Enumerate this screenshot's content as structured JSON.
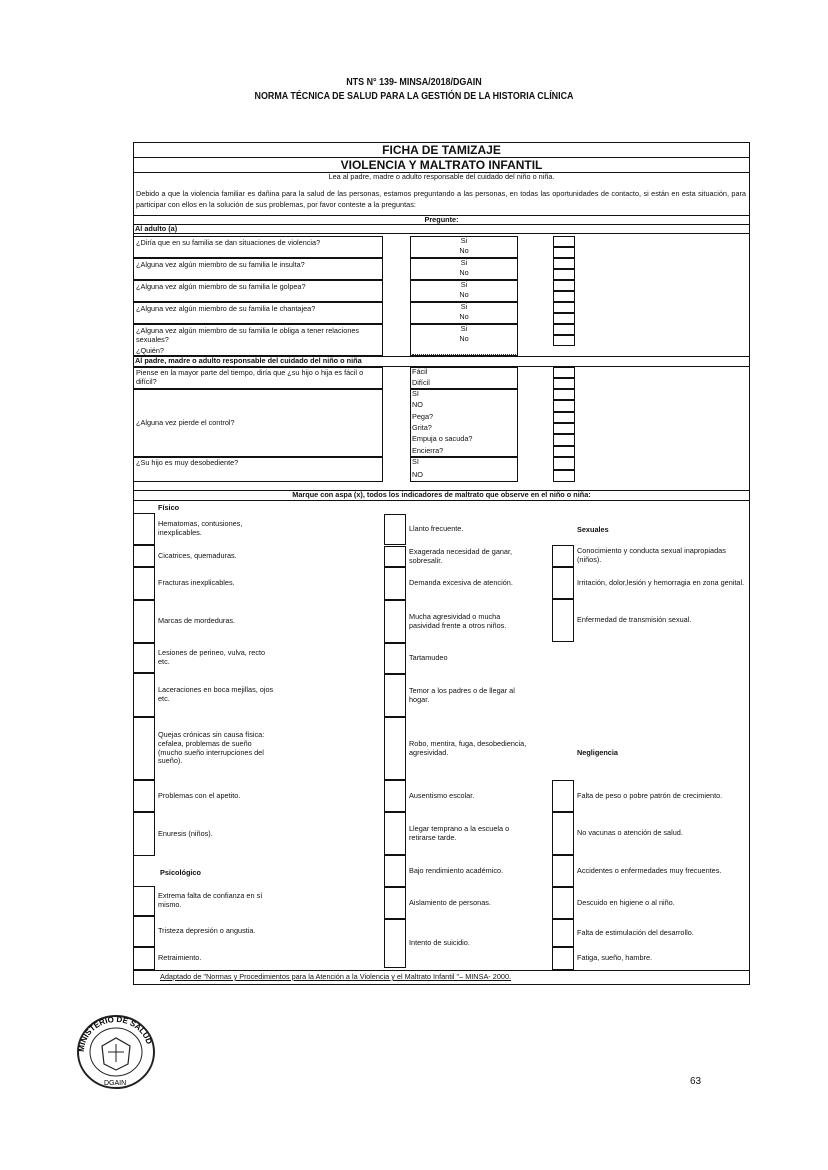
{
  "header": {
    "line1": "NTS N° 139- MINSA/2018/DGAIN",
    "line2": "NORMA TÉCNICA DE SALUD PARA LA GESTIÓN DE LA HISTORIA CLÍNICA"
  },
  "form": {
    "title": "FICHA DE TAMIZAJE",
    "subtitle": "VIOLENCIA Y MALTRATO INFANTIL",
    "instruction": "Lea al padre, madre o adulto responsable del cuidado del niño o niña.",
    "intro": "Debido a que la violencia familiar es dañina para la salud de las personas, estamos preguntando a las personas, en todas las oportunidades de contacto, si están en esta situación, para participar con ellos en la solución de sus problemas, por favor conteste a la preguntas:",
    "ask_label": "Pregunte:",
    "adult_section": "Al adulto (a)",
    "adult_questions": [
      {
        "q": "¿Diría que en su familia se dan situaciones de violencia?",
        "options": [
          "Si",
          "No"
        ]
      },
      {
        "q": "¿Alguna vez algún miembro de su familia le insulta?",
        "options": [
          "Si",
          "No"
        ]
      },
      {
        "q": "¿Alguna vez algún miembro de su familia le golpea?",
        "options": [
          "Si",
          "No"
        ]
      },
      {
        "q": "¿Alguna vez algún miembro de su familia le chantajea?",
        "options": [
          "Si",
          "No"
        ]
      },
      {
        "q": "¿Alguna vez algún miembro de su familia le obliga a tener relaciones sexuales?",
        "options": [
          "Si",
          "No"
        ],
        "extra": "¿Quién?"
      }
    ],
    "parent_section": "Al padre, madre o adulto responsable del cuidado del niño o niña",
    "parent_questions": [
      {
        "q": "Piense en la mayor parte del tiempo, diría que ¿su hijo o hija es fácil o difícil?",
        "options": [
          "Fácil",
          "Difícil"
        ]
      },
      {
        "q": "¿Alguna vez pierde el control?",
        "options": [
          "SI",
          "NO",
          "Pega?",
          "Grita?",
          "Empuja o sacuda?",
          "Encierra?"
        ]
      },
      {
        "q": "¿Su hijo es muy desobediente?",
        "options": [
          "SI",
          "NO"
        ]
      }
    ],
    "indicators_title": "Marque con aspa (x), todos los indicadores de maltrato que observe en el niño o niña:",
    "labels": {
      "fisico": "Físico",
      "psicologico": "Psicológico",
      "sexuales": "Sexuales",
      "negligencia": "Negligencia"
    },
    "col1": [
      "Hematomas, contusiones, inexplicables.",
      "Cicatrices, quemaduras.",
      "Fracturas inexplicables.",
      "Marcas de mordeduras.",
      "Lesiones de perineo, vulva, recto etc.",
      "Laceraciones en boca mejillas, ojos etc.",
      "Quejas crónicas sin causa física: cefalea, problemas de sueño (mucho sueño interrupciones del sueño).",
      "Problemas con el apetito.",
      "Enuresis (niños).",
      "Extrema falta de confianza en sí mismo.",
      "Tristeza depresión o angustia.",
      "Retraimiento."
    ],
    "col2": [
      "Llanto frecuente.",
      "Exagerada necesidad de ganar, sobresalir.",
      "Demanda excesiva de atención.",
      "Mucha agresividad o mucha pasividad frente a otros niños.",
      "Tartamudeo",
      "Temor a los padres o de llegar al hogar.",
      "Robo, mentira, fuga, desobediencia, agresividad.",
      "Ausentismo escolar.",
      "Llegar temprano a la escuela o retirarse tarde.",
      "Bajo rendimiento académico.",
      "Aislamiento de personas.",
      "Intento de suicidio."
    ],
    "col3": [
      "Conocimiento y conducta sexual inapropiadas (niños).",
      "Irritación, dolor,lesión y hemorragia en zona genital.",
      "Enfermedad de transmisión sexual.",
      "Falta de peso o pobre patrón de crecimiento.",
      "No vacunas o atención de salud.",
      "Accidentes o enfermedades muy frecuentes.",
      "Descuido en higiene o al niño.",
      "Falta de estimulación del desarrollo.",
      "Fatiga, sueño, hambre."
    ],
    "footer": "Adaptado de \"Normas y Procedimientos para la Atención a la Violencia y el Maltrato Infantil \"– MINSA- 2000."
  },
  "seal": {
    "text": "MINISTERIO DE SALUD · DGAIN"
  },
  "page_number": "63"
}
